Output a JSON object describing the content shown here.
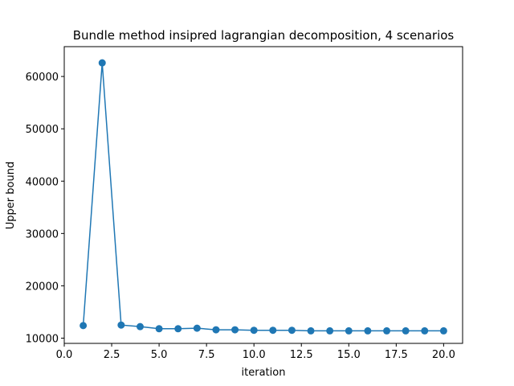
{
  "chart_data": {
    "type": "line",
    "title": "Bundle method insipred lagrangian decomposition, 4 scenarios",
    "xlabel": "iteration",
    "ylabel": "Upper bound",
    "xlim": [
      0.0,
      21.0
    ],
    "ylim": [
      9000,
      65700
    ],
    "xticks": [
      0.0,
      2.5,
      5.0,
      7.5,
      10.0,
      12.5,
      15.0,
      17.5,
      20.0
    ],
    "xtick_labels": [
      "0.0",
      "2.5",
      "5.0",
      "7.5",
      "10.0",
      "12.5",
      "15.0",
      "17.5",
      "20.0"
    ],
    "yticks": [
      10000,
      20000,
      30000,
      40000,
      50000,
      60000
    ],
    "ytick_labels": [
      "10000",
      "20000",
      "30000",
      "40000",
      "50000",
      "60000"
    ],
    "grid": false,
    "markers": "circle",
    "color": "#1f77b4",
    "series": [
      {
        "x": [
          1,
          2,
          3,
          4,
          5,
          6,
          7,
          8,
          9,
          10,
          11,
          12,
          13,
          14,
          15,
          16,
          17,
          18,
          19,
          20
        ],
        "values": [
          12400,
          62600,
          12500,
          12200,
          11800,
          11800,
          11900,
          11600,
          11600,
          11500,
          11500,
          11500,
          11400,
          11400,
          11400,
          11400,
          11400,
          11400,
          11400,
          11400
        ]
      }
    ]
  }
}
